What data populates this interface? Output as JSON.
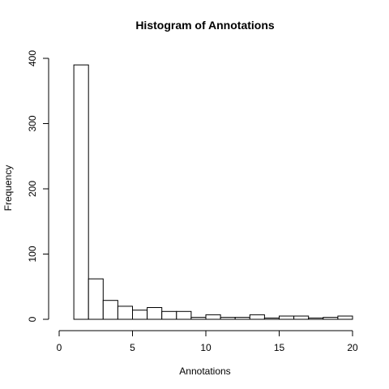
{
  "chart_data": {
    "type": "bar",
    "title": "Histogram of Annotations",
    "xlabel": "Annotations",
    "ylabel": "Frequency",
    "xlim": [
      0,
      20
    ],
    "ylim": [
      0,
      400
    ],
    "x_ticks": [
      "0",
      "5",
      "10",
      "15",
      "20"
    ],
    "y_ticks": [
      "0",
      "100",
      "200",
      "300",
      "400"
    ],
    "bin_width": 1,
    "bins": [
      {
        "start": 1,
        "end": 2,
        "count": 390
      },
      {
        "start": 2,
        "end": 3,
        "count": 62
      },
      {
        "start": 3,
        "end": 4,
        "count": 29
      },
      {
        "start": 4,
        "end": 5,
        "count": 20
      },
      {
        "start": 5,
        "end": 6,
        "count": 14
      },
      {
        "start": 6,
        "end": 7,
        "count": 18
      },
      {
        "start": 7,
        "end": 8,
        "count": 12
      },
      {
        "start": 8,
        "end": 9,
        "count": 12
      },
      {
        "start": 9,
        "end": 10,
        "count": 3
      },
      {
        "start": 10,
        "end": 11,
        "count": 7
      },
      {
        "start": 11,
        "end": 12,
        "count": 3
      },
      {
        "start": 12,
        "end": 13,
        "count": 3
      },
      {
        "start": 13,
        "end": 14,
        "count": 7
      },
      {
        "start": 14,
        "end": 15,
        "count": 2
      },
      {
        "start": 15,
        "end": 16,
        "count": 5
      },
      {
        "start": 16,
        "end": 17,
        "count": 5
      },
      {
        "start": 17,
        "end": 18,
        "count": 2
      },
      {
        "start": 18,
        "end": 19,
        "count": 3
      },
      {
        "start": 19,
        "end": 20,
        "count": 5
      }
    ],
    "grid": false,
    "bar_fill": "#ffffff",
    "bar_stroke": "#000000"
  }
}
